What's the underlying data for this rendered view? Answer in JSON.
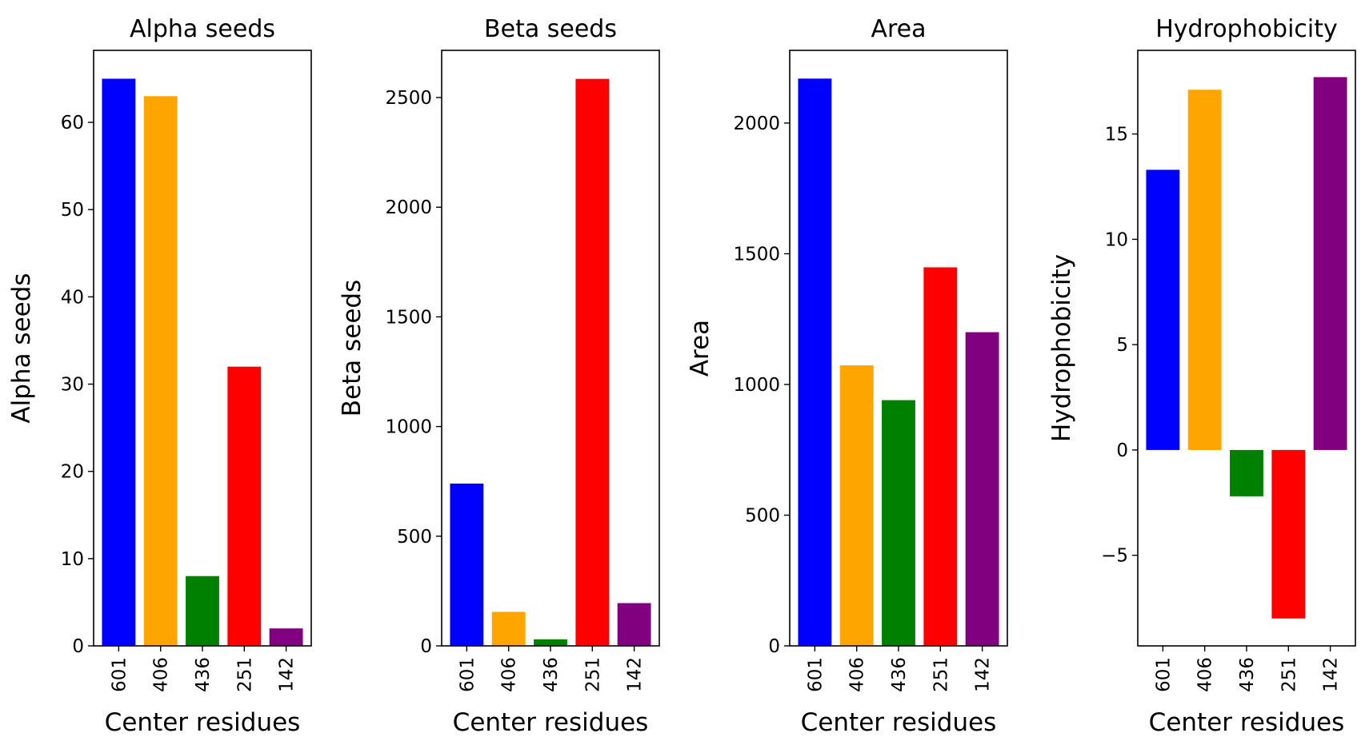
{
  "chart_data": [
    {
      "type": "bar",
      "title": "Alpha seeds",
      "xlabel": "Center residues",
      "ylabel": "Alpha seeds",
      "categories": [
        "601",
        "406",
        "436",
        "251",
        "142"
      ],
      "values": [
        65,
        63,
        8,
        32,
        2
      ],
      "colors": [
        "#0000ff",
        "#ffa500",
        "#008000",
        "#ff0000",
        "#800080"
      ],
      "ylim": [
        0,
        68.25
      ],
      "yticks": [
        0,
        10,
        20,
        30,
        40,
        50,
        60
      ],
      "ytick_labels": [
        "0",
        "10",
        "20",
        "30",
        "40",
        "50",
        "60"
      ],
      "grid": false
    },
    {
      "type": "bar",
      "title": "Beta seeds",
      "xlabel": "Center residues",
      "ylabel": "Beta seeds",
      "categories": [
        "601",
        "406",
        "436",
        "251",
        "142"
      ],
      "values": [
        740,
        155,
        30,
        2585,
        195
      ],
      "colors": [
        "#0000ff",
        "#ffa500",
        "#008000",
        "#ff0000",
        "#800080"
      ],
      "ylim": [
        0,
        2715
      ],
      "yticks": [
        0,
        500,
        1000,
        1500,
        2000,
        2500
      ],
      "ytick_labels": [
        "0",
        "500",
        "1000",
        "1500",
        "2000",
        "2500"
      ],
      "grid": false
    },
    {
      "type": "bar",
      "title": "Area",
      "xlabel": "Center residues",
      "ylabel": "Area",
      "categories": [
        "601",
        "406",
        "436",
        "251",
        "142"
      ],
      "values": [
        2170,
        1073,
        940,
        1448,
        1200
      ],
      "colors": [
        "#0000ff",
        "#ffa500",
        "#008000",
        "#ff0000",
        "#800080"
      ],
      "ylim": [
        0,
        2278
      ],
      "yticks": [
        0,
        500,
        1000,
        1500,
        2000
      ],
      "ytick_labels": [
        "0",
        "500",
        "1000",
        "1500",
        "2000"
      ],
      "grid": false
    },
    {
      "type": "bar",
      "title": "Hydrophobicity",
      "xlabel": "Center residues",
      "ylabel": "Hydrophobicity",
      "categories": [
        "601",
        "406",
        "436",
        "251",
        "142"
      ],
      "values": [
        13.3,
        17.1,
        -2.2,
        -8.0,
        17.7
      ],
      "colors": [
        "#0000ff",
        "#ffa500",
        "#008000",
        "#ff0000",
        "#800080"
      ],
      "ylim": [
        -9.3,
        18.97
      ],
      "yticks": [
        -5,
        0,
        5,
        10,
        15
      ],
      "ytick_labels": [
        "−5",
        "0",
        "5",
        "10",
        "15"
      ],
      "grid": false
    }
  ]
}
